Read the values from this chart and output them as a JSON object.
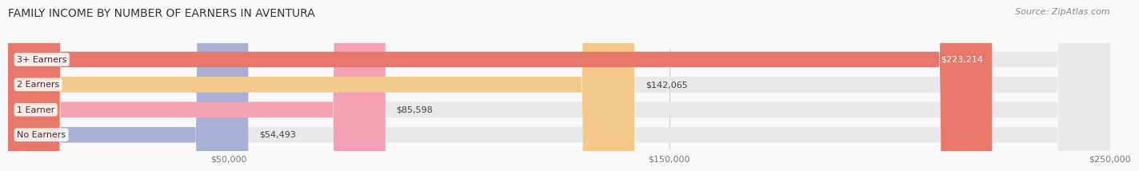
{
  "title": "FAMILY INCOME BY NUMBER OF EARNERS IN AVENTURA",
  "source": "Source: ZipAtlas.com",
  "categories": [
    "No Earners",
    "1 Earner",
    "2 Earners",
    "3+ Earners"
  ],
  "values": [
    54493,
    85598,
    142065,
    223214
  ],
  "labels": [
    "$54,493",
    "$85,598",
    "$142,065",
    "$223,214"
  ],
  "bar_colors": [
    "#a8aed4",
    "#f4a0b5",
    "#f5c98a",
    "#e8796a"
  ],
  "bar_bg_color": "#eeeeee",
  "label_bg_color": "#f5f5f5",
  "xmin": 0,
  "xmax": 250000,
  "xticks": [
    50000,
    150000,
    250000
  ],
  "xtick_labels": [
    "$50,000",
    "$150,000",
    "$250,000"
  ],
  "title_fontsize": 10,
  "source_fontsize": 8,
  "bar_label_fontsize": 8,
  "category_fontsize": 8,
  "tick_fontsize": 8,
  "bar_height": 0.62,
  "background_color": "#f9f9f9"
}
